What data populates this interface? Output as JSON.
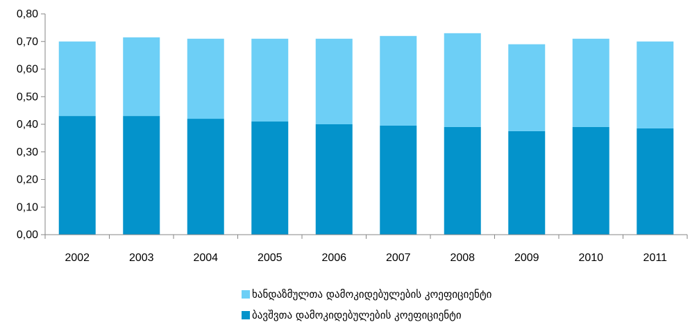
{
  "chart_data": {
    "type": "bar",
    "stacked": true,
    "categories": [
      "2002",
      "2003",
      "2004",
      "2005",
      "2006",
      "2007",
      "2008",
      "2009",
      "2010",
      "2011"
    ],
    "series": [
      {
        "name": "ბავშვთა დამოკიდებულების კოეფიციენტი",
        "color": "#0493CB",
        "values": [
          0.43,
          0.43,
          0.42,
          0.41,
          0.4,
          0.395,
          0.39,
          0.375,
          0.39,
          0.385
        ]
      },
      {
        "name": "ხანდაზმულთა დამოკიდებულების კოეფიციენტი",
        "color": "#6DCFF6",
        "values": [
          0.27,
          0.285,
          0.29,
          0.3,
          0.31,
          0.325,
          0.34,
          0.315,
          0.32,
          0.315
        ]
      }
    ],
    "ylim": [
      0,
      0.8
    ],
    "yticks": [
      "0,00",
      "0,10",
      "0,20",
      "0,30",
      "0,40",
      "0,50",
      "0,60",
      "0,70",
      "0,80"
    ],
    "xlabel": "",
    "ylabel": "",
    "title": "",
    "grid": false,
    "legend": {
      "placement": "bottom",
      "order": [
        "ხანდაზმულთა დამოკიდებულების კოეფიციენტი",
        "ბავშვთა დამოკიდებულების კოეფიციენტი"
      ]
    }
  }
}
